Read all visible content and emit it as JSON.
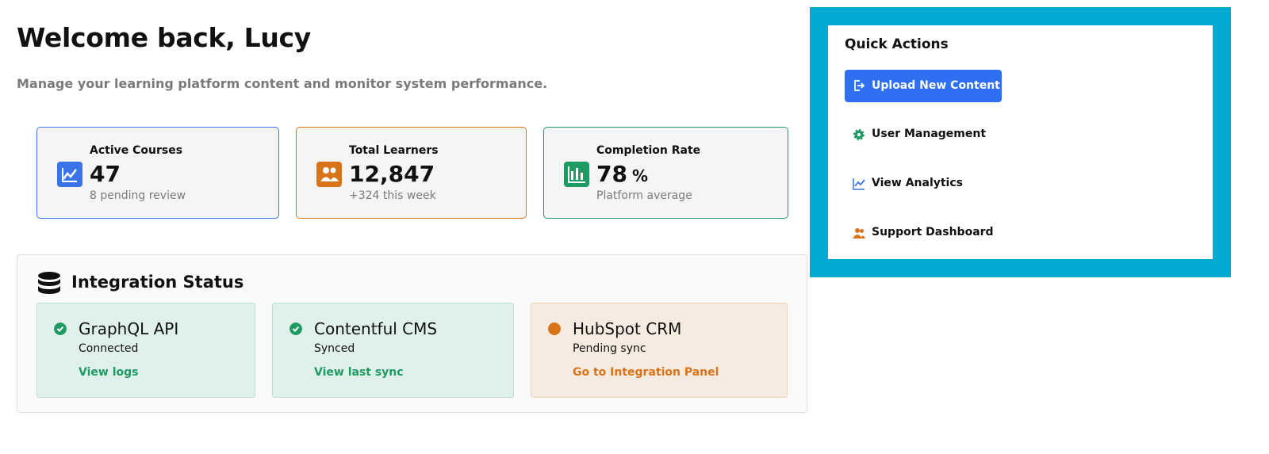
{
  "header": {
    "title": "Welcome back, Lucy",
    "subtitle": "Manage your learning platform content and monitor system performance."
  },
  "stats": [
    {
      "label": "Active Courses",
      "value": "47",
      "note": "8 pending review"
    },
    {
      "label": "Total Learners",
      "value": "12,847",
      "note": "+324 this week"
    },
    {
      "label": "Completion Rate",
      "value": "78",
      "unit": "%",
      "note": "Platform average"
    }
  ],
  "integrations": {
    "title": "Integration Status",
    "items": [
      {
        "name": "GraphQL API",
        "status": "Connected",
        "link": "View logs"
      },
      {
        "name": "Contentful CMS",
        "status": "Synced",
        "link": "View last sync"
      },
      {
        "name": "HubSpot CRM",
        "status": "Pending sync",
        "link": "Go to Integration Panel"
      }
    ]
  },
  "quick_actions": {
    "title": "Quick Actions",
    "actions": [
      "Upload New Content",
      "User Management",
      "View Analytics",
      "Support Dashboard"
    ]
  }
}
